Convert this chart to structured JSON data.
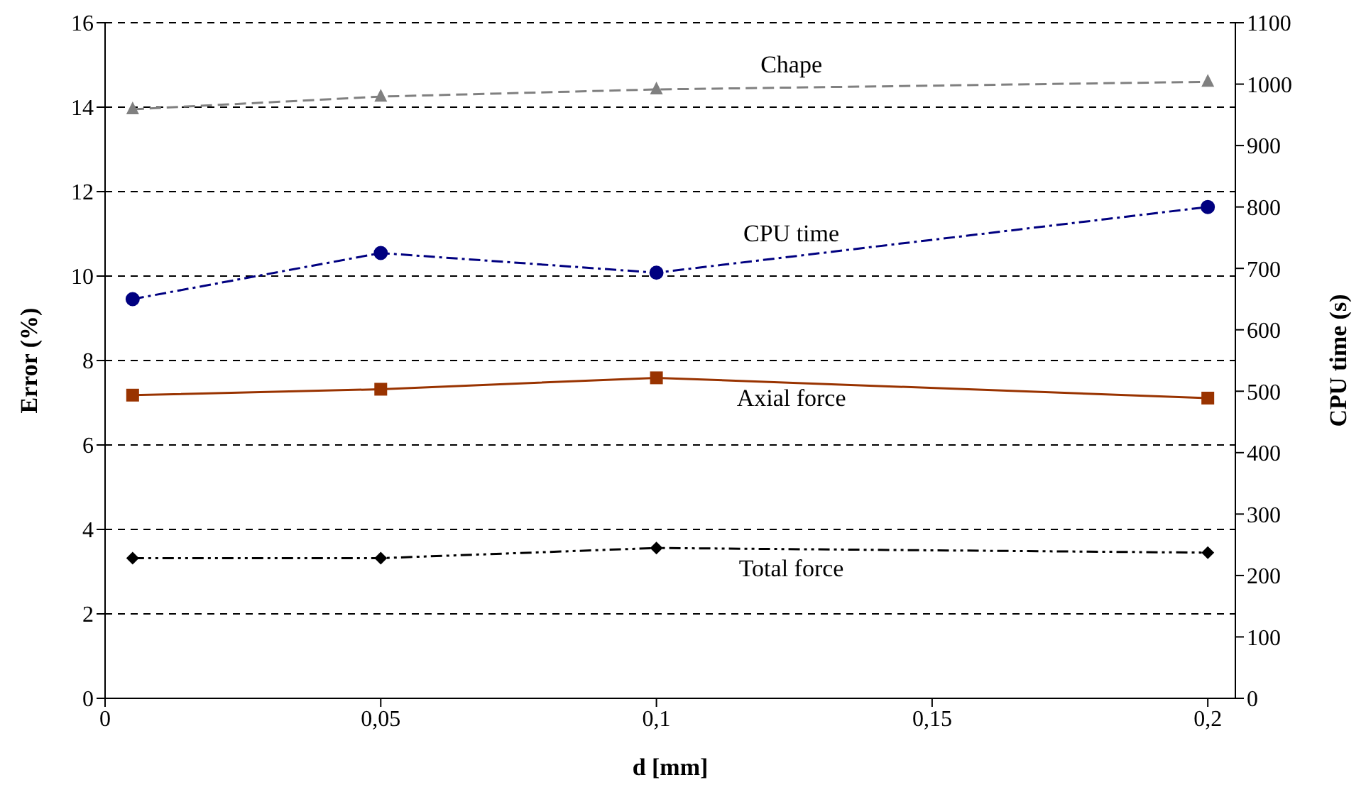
{
  "chart_data": {
    "type": "line",
    "xlabel": "d [mm]",
    "ylabel": "Error (%)",
    "y2label": "CPU time (s)",
    "x": [
      0.005,
      0.05,
      0.1,
      0.2
    ],
    "xlim": [
      0,
      0.205
    ],
    "xticks": [
      0,
      {
        "value": 0.05,
        "label": "0,05"
      },
      {
        "value": 0.1,
        "label": "0,1"
      },
      {
        "value": 0.15,
        "label": "0,15"
      },
      {
        "value": 0.2,
        "label": "0,2"
      }
    ],
    "ylim": [
      0,
      16
    ],
    "yticks": [
      0,
      2,
      4,
      6,
      8,
      10,
      12,
      14,
      16
    ],
    "y2lim": [
      0,
      1100
    ],
    "y2ticks": [
      0,
      100,
      200,
      300,
      400,
      500,
      600,
      700,
      800,
      900,
      1000,
      1100
    ],
    "grid": "y",
    "legend": false,
    "series": [
      {
        "name": "Chape",
        "color": "#808080",
        "values": [
          13.95,
          14.25,
          14.42,
          14.6
        ],
        "marker": "triangle",
        "line_style": "dashed"
      },
      {
        "name": "CPU time",
        "color": "#000080",
        "values": [
          650,
          725,
          693,
          800
        ],
        "axis": "y2",
        "marker": "circle",
        "line_style": "dashdot"
      },
      {
        "name": "Axial force",
        "color": "#993300",
        "values": [
          7.18,
          7.32,
          7.59,
          7.11
        ],
        "marker": "square",
        "line_style": "solid"
      },
      {
        "name": "Total force",
        "color": "#000000",
        "values": [
          3.32,
          3.32,
          3.56,
          3.45
        ],
        "marker": "diamond",
        "line_style": "dashdotdot"
      }
    ]
  }
}
